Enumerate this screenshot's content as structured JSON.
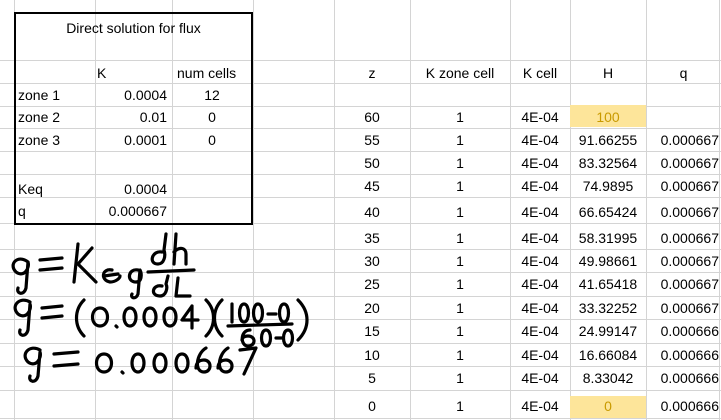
{
  "left_table": {
    "title": "Direct solution for flux",
    "headers": [
      "",
      "K",
      "num cells"
    ],
    "rows": [
      {
        "label": "zone 1",
        "k": "0.0004",
        "cells": "12"
      },
      {
        "label": "zone 2",
        "k": "0.01",
        "cells": "0"
      },
      {
        "label": "zone 3",
        "k": "0.0001",
        "cells": "0"
      }
    ],
    "keq_label": "Keq",
    "keq_value": "0.0004",
    "q_label": "q",
    "q_value": "0.000667"
  },
  "right_table": {
    "headers": [
      "z",
      "K zone cell",
      "K cell",
      "H",
      "q"
    ],
    "rows": [
      {
        "z": "60",
        "zone": "1",
        "kcell": "4E-04",
        "h": "100",
        "q": ""
      },
      {
        "z": "55",
        "zone": "1",
        "kcell": "4E-04",
        "h": "91.66255",
        "q": "0.000667"
      },
      {
        "z": "50",
        "zone": "1",
        "kcell": "4E-04",
        "h": "83.32564",
        "q": "0.000667"
      },
      {
        "z": "45",
        "zone": "1",
        "kcell": "4E-04",
        "h": "74.9895",
        "q": "0.000667"
      },
      {
        "z": "40",
        "zone": "1",
        "kcell": "4E-04",
        "h": "66.65424",
        "q": "0.000667"
      },
      {
        "z": "35",
        "zone": "1",
        "kcell": "4E-04",
        "h": "58.31995",
        "q": "0.000667"
      },
      {
        "z": "30",
        "zone": "1",
        "kcell": "4E-04",
        "h": "49.98661",
        "q": "0.000667"
      },
      {
        "z": "25",
        "zone": "1",
        "kcell": "4E-04",
        "h": "41.65418",
        "q": "0.000667"
      },
      {
        "z": "20",
        "zone": "1",
        "kcell": "4E-04",
        "h": "33.32252",
        "q": "0.000667"
      },
      {
        "z": "15",
        "zone": "1",
        "kcell": "4E-04",
        "h": "24.99147",
        "q": "0.000666"
      },
      {
        "z": "10",
        "zone": "1",
        "kcell": "4E-04",
        "h": "16.66084",
        "q": "0.000666"
      },
      {
        "z": "5",
        "zone": "1",
        "kcell": "4E-04",
        "h": "8.33042",
        "q": "0.000666"
      },
      {
        "z": "0",
        "zone": "1",
        "kcell": "4E-04",
        "h": "0",
        "q": "0.000666"
      }
    ],
    "highlight_color": "#fde59a",
    "highlight_text_color": "#c99a00"
  },
  "handwriting": {
    "line1": "q = Keq dh/dL",
    "line2": "q = (0.0004)(100-0 / 60-0)",
    "line3": "q = 0.000667"
  }
}
